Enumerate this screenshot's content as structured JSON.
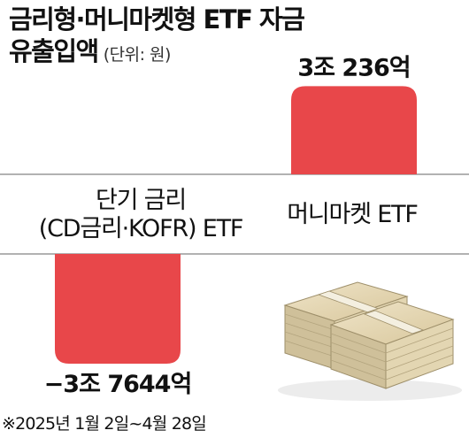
{
  "title": {
    "line1": "금리형·머니마켓형 ETF 자금",
    "line2": "유출입액",
    "unit": "(단위: 원)"
  },
  "footnote": "※2025년 1월 2일~4월 28일",
  "colors": {
    "bar": "#e8474a",
    "axis": "#666666",
    "text": "#111111"
  },
  "icon": "money-stack-icon",
  "chart_data": {
    "type": "bar",
    "categories": [
      "단기 금리\n(CD금리·KOFR) ETF",
      "머니마켓 ETF"
    ],
    "category_lines": [
      [
        "단기 금리",
        "(CD금리·KOFR) ETF"
      ],
      [
        "머니마켓 ETF"
      ]
    ],
    "values": [
      -37644,
      30236
    ],
    "value_unit": "억원",
    "data_labels": [
      "−3조 7644억",
      "3조 236억"
    ],
    "title": "금리형·머니마켓형 ETF 자금 유출입액",
    "ylabel": "",
    "ylim": [
      -37644,
      30236
    ],
    "grid": false,
    "legend": "none"
  }
}
